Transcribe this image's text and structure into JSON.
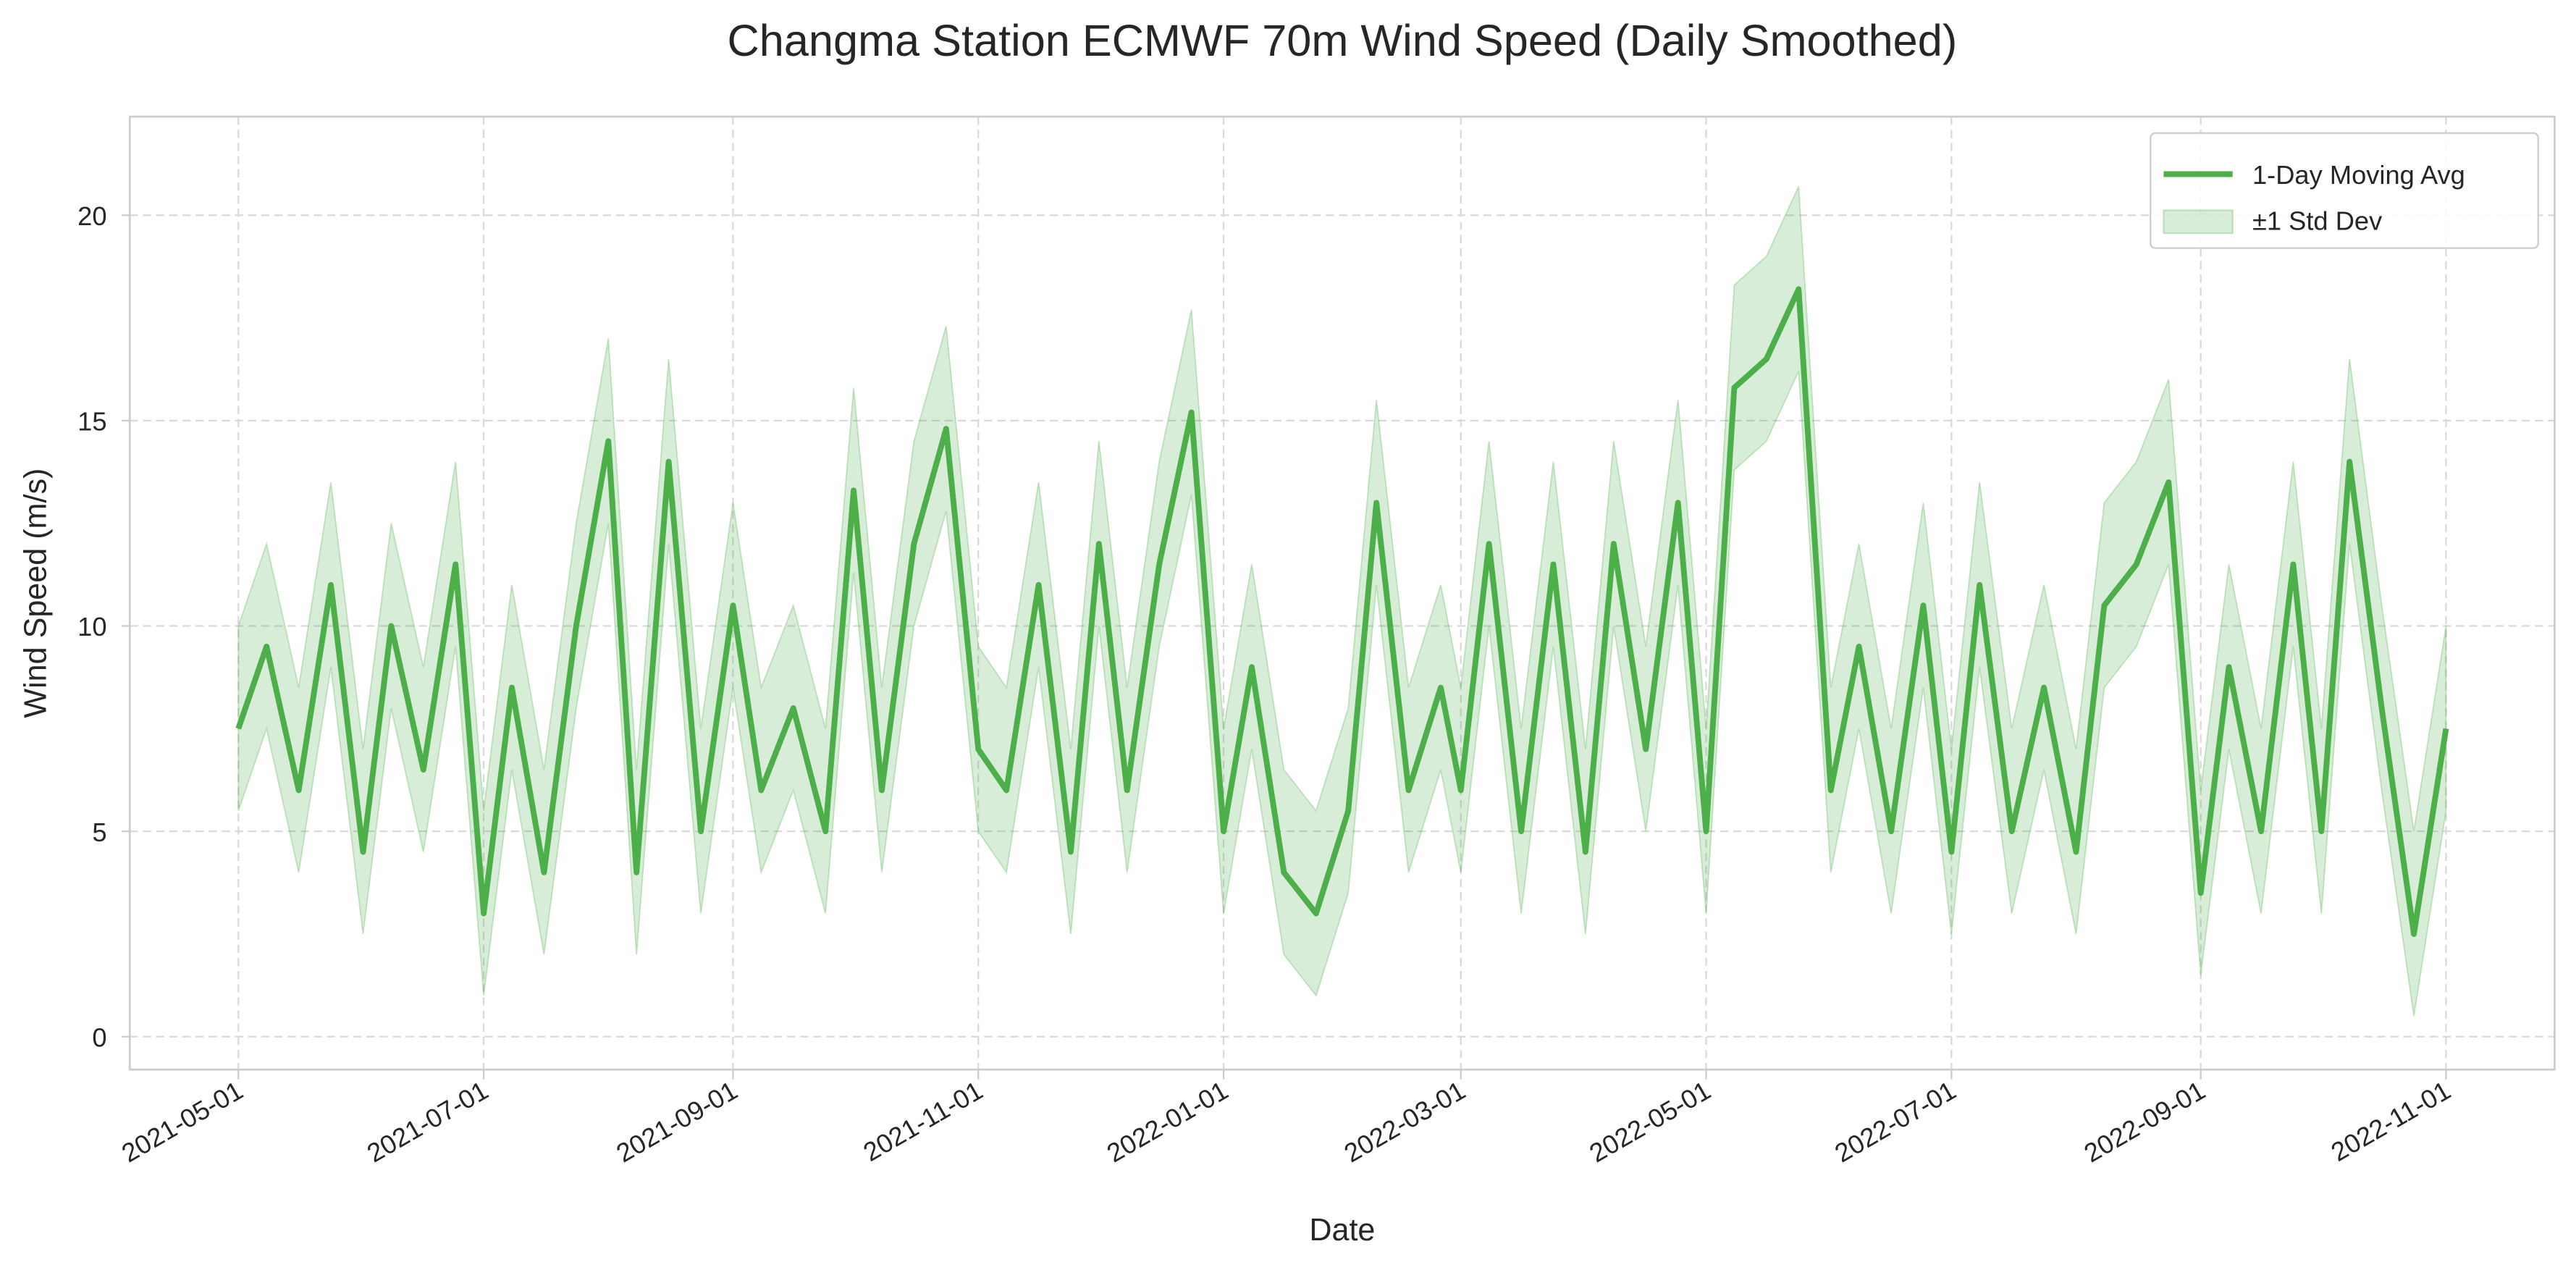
{
  "chart_data": {
    "type": "line",
    "title": "Changma Station ECMWF 70m Wind Speed (Daily Smoothed)",
    "x_label": "Date",
    "y_label": "Wind Speed (m/s)",
    "x": [
      "2021-05-01",
      "2021-05-08",
      "2021-05-16",
      "2021-05-24",
      "2021-06-01",
      "2021-06-08",
      "2021-06-16",
      "2021-06-24",
      "2021-07-01",
      "2021-07-08",
      "2021-07-16",
      "2021-07-24",
      "2021-08-01",
      "2021-08-08",
      "2021-08-16",
      "2021-08-24",
      "2021-09-01",
      "2021-09-08",
      "2021-09-16",
      "2021-09-24",
      "2021-10-01",
      "2021-10-08",
      "2021-10-16",
      "2021-10-24",
      "2021-11-01",
      "2021-11-08",
      "2021-11-16",
      "2021-11-24",
      "2021-12-01",
      "2021-12-08",
      "2021-12-16",
      "2021-12-24",
      "2022-01-01",
      "2022-01-08",
      "2022-01-16",
      "2022-01-24",
      "2022-02-01",
      "2022-02-08",
      "2022-02-16",
      "2022-02-24",
      "2022-03-01",
      "2022-03-08",
      "2022-03-16",
      "2022-03-24",
      "2022-04-01",
      "2022-04-08",
      "2022-04-16",
      "2022-04-24",
      "2022-05-01",
      "2022-05-08",
      "2022-05-16",
      "2022-05-24",
      "2022-06-01",
      "2022-06-08",
      "2022-06-16",
      "2022-06-24",
      "2022-07-01",
      "2022-07-08",
      "2022-07-16",
      "2022-07-24",
      "2022-08-01",
      "2022-08-08",
      "2022-08-16",
      "2022-08-24",
      "2022-09-01",
      "2022-09-08",
      "2022-09-16",
      "2022-09-24",
      "2022-10-01",
      "2022-10-08",
      "2022-10-16",
      "2022-10-24",
      "2022-11-01"
    ],
    "series": [
      {
        "name": "1-Day Moving Avg",
        "color": "#4daf4a",
        "values": [
          7.5,
          9.5,
          6.0,
          11.0,
          4.5,
          10.0,
          6.5,
          11.5,
          3.0,
          8.5,
          4.0,
          10.0,
          14.5,
          4.0,
          14.0,
          5.0,
          10.5,
          6.0,
          8.0,
          5.0,
          13.3,
          6.0,
          12.0,
          14.8,
          7.0,
          6.0,
          11.0,
          4.5,
          12.0,
          6.0,
          11.5,
          15.2,
          5.0,
          9.0,
          4.0,
          3.0,
          5.5,
          13.0,
          6.0,
          8.5,
          6.0,
          12.0,
          5.0,
          11.5,
          4.5,
          12.0,
          7.0,
          13.0,
          5.0,
          15.8,
          16.5,
          18.2,
          6.0,
          9.5,
          5.0,
          10.5,
          4.5,
          11.0,
          5.0,
          8.5,
          4.5,
          10.5,
          11.5,
          13.5,
          3.5,
          9.0,
          5.0,
          11.5,
          5.0,
          14.0,
          8.0,
          2.5,
          7.5
        ]
      }
    ],
    "band": {
      "name": "±1 Std Dev",
      "color": "#4daf4a",
      "lower": [
        5.5,
        7.5,
        4.0,
        9.0,
        2.5,
        8.0,
        4.5,
        9.5,
        1.0,
        6.5,
        2.0,
        8.0,
        12.5,
        2.0,
        12.0,
        3.0,
        8.5,
        4.0,
        6.0,
        3.0,
        11.3,
        4.0,
        10.0,
        12.8,
        5.0,
        4.0,
        9.0,
        2.5,
        10.0,
        4.0,
        9.5,
        13.2,
        3.0,
        7.0,
        2.0,
        1.0,
        3.5,
        11.0,
        4.0,
        6.5,
        4.0,
        10.0,
        3.0,
        9.5,
        2.5,
        10.0,
        5.0,
        11.0,
        3.0,
        13.8,
        14.5,
        16.2,
        4.0,
        7.5,
        3.0,
        8.5,
        2.5,
        9.0,
        3.0,
        6.5,
        2.5,
        8.5,
        9.5,
        11.5,
        1.5,
        7.0,
        3.0,
        9.5,
        3.0,
        12.0,
        6.0,
        0.5,
        5.5
      ],
      "upper": [
        10,
        12,
        8.5,
        13.5,
        7,
        12.5,
        9,
        14,
        5.5,
        11,
        6.5,
        12.5,
        17,
        6.5,
        16.5,
        7.5,
        13,
        8.5,
        10.5,
        7.5,
        15.8,
        8.5,
        14.5,
        17.3,
        9.5,
        8.5,
        13.5,
        7,
        14.5,
        8.5,
        14,
        17.7,
        7.5,
        11.5,
        6.5,
        5.5,
        8,
        15.5,
        8.5,
        11,
        8.5,
        14.5,
        7.5,
        14,
        7,
        14.5,
        9.5,
        15.5,
        7.5,
        18.3,
        19,
        20.7,
        8.5,
        12,
        7.5,
        13,
        7,
        13.5,
        7.5,
        11,
        7,
        13,
        14,
        16,
        6,
        11.5,
        7.5,
        14,
        7.5,
        16.5,
        10.5,
        5,
        10
      ]
    },
    "xlim": [
      "2021-04-04",
      "2022-11-28"
    ],
    "xticks": [
      "2021-05-01",
      "2021-07-01",
      "2021-09-01",
      "2021-11-01",
      "2022-01-01",
      "2022-03-01",
      "2022-05-01",
      "2022-07-01",
      "2022-09-01",
      "2022-11-01"
    ],
    "ylim": [
      -0.8,
      22.4
    ],
    "yticks": [
      0,
      5,
      10,
      15,
      20
    ],
    "grid": true,
    "legend": "upper right"
  }
}
